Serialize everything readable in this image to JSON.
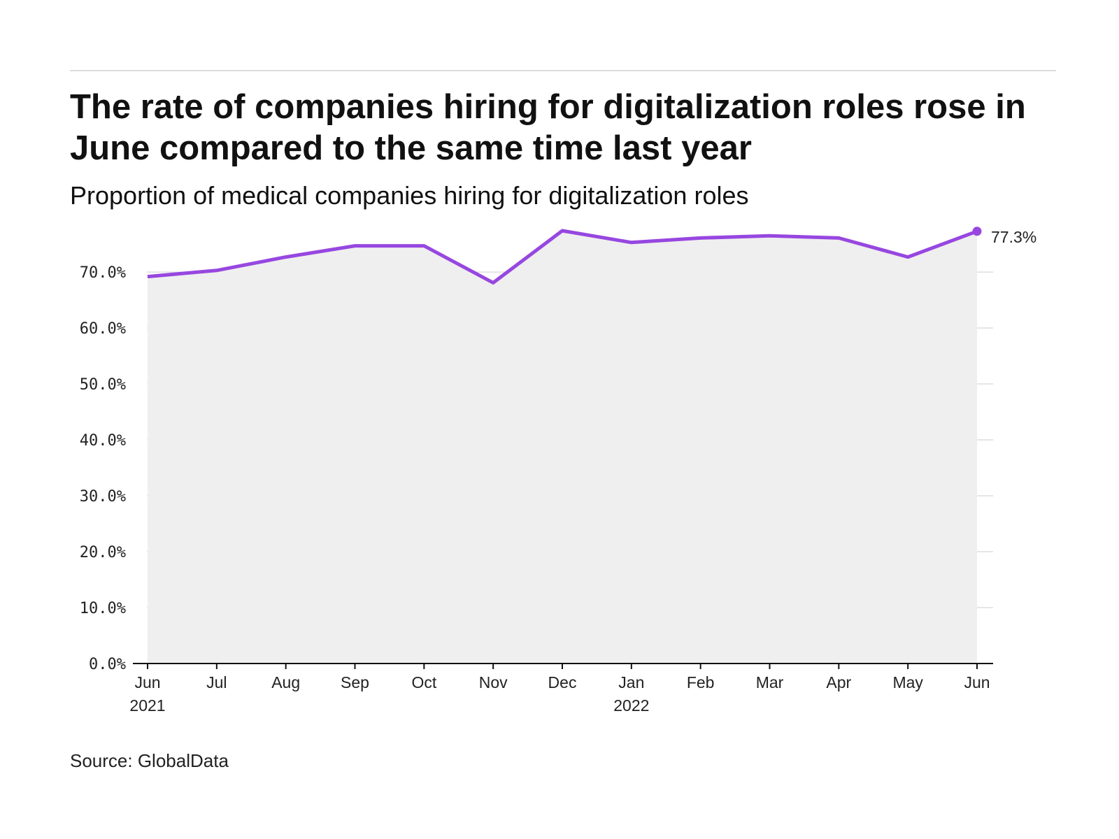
{
  "title": "The rate of companies hiring for digitalization roles rose in June compared to the same time last year",
  "subtitle": "Proportion of medical companies hiring for digitalization roles",
  "source": "Source: GlobalData",
  "colors": {
    "line": "#9747e0",
    "area": "#efefef",
    "grid": "#dddddd",
    "axis": "#111111",
    "rule": "#dddddd"
  },
  "chart_data": {
    "type": "area",
    "title": "The rate of companies hiring for digitalization roles rose in June compared to the same time last year",
    "subtitle": "Proportion of medical companies hiring for digitalization roles",
    "xlabel": "",
    "ylabel": "",
    "x_ticks": [
      {
        "month": "Jun",
        "year": "2021"
      },
      {
        "month": "Jul",
        "year": ""
      },
      {
        "month": "Aug",
        "year": ""
      },
      {
        "month": "Sep",
        "year": ""
      },
      {
        "month": "Oct",
        "year": ""
      },
      {
        "month": "Nov",
        "year": ""
      },
      {
        "month": "Dec",
        "year": ""
      },
      {
        "month": "Jan",
        "year": "2022"
      },
      {
        "month": "Feb",
        "year": ""
      },
      {
        "month": "Mar",
        "year": ""
      },
      {
        "month": "Apr",
        "year": ""
      },
      {
        "month": "May",
        "year": ""
      },
      {
        "month": "Jun",
        "year": ""
      }
    ],
    "series": [
      {
        "x": [
          "2021-06",
          "2021-07",
          "2021-08",
          "2021-09",
          "2021-10",
          "2021-11",
          "2021-12",
          "2022-01",
          "2022-02",
          "2022-03",
          "2022-04",
          "2022-05",
          "2022-06"
        ],
        "values": [
          69.2,
          70.3,
          72.7,
          74.7,
          74.7,
          68.1,
          77.4,
          75.3,
          76.1,
          76.5,
          76.1,
          72.7,
          77.3
        ]
      }
    ],
    "y_ticks": [
      "0.0%",
      "10.0%",
      "20.0%",
      "30.0%",
      "40.0%",
      "50.0%",
      "60.0%",
      "70.0%"
    ],
    "y_tick_values": [
      0,
      10,
      20,
      30,
      40,
      50,
      60,
      70
    ],
    "ylim": [
      0,
      77.4
    ],
    "grid": true,
    "end_label": "77.3%"
  }
}
